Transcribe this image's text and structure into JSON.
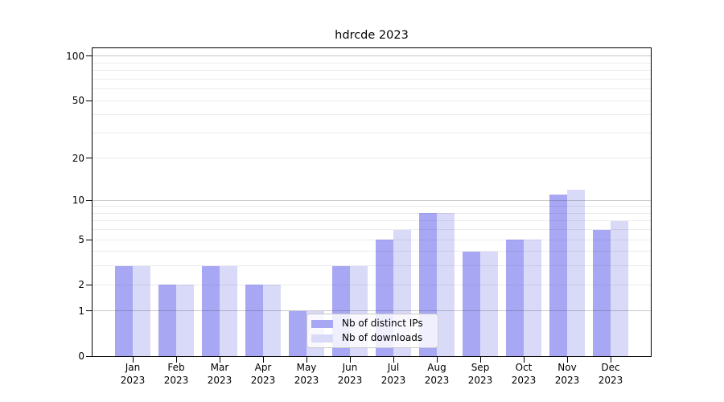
{
  "title": "hdrcde 2023",
  "chart_data": {
    "type": "bar",
    "title": "hdrcde 2023",
    "categories": [
      "Jan 2023",
      "Feb 2023",
      "Mar 2023",
      "Apr 2023",
      "May 2023",
      "Jun 2023",
      "Jul 2023",
      "Aug 2023",
      "Sep 2023",
      "Oct 2023",
      "Nov 2023",
      "Dec 2023"
    ],
    "series": [
      {
        "name": "Nb of distinct IPs",
        "color": "#a7a7f4",
        "values": [
          3,
          2,
          3,
          2,
          1,
          3,
          5,
          8,
          4,
          5,
          11,
          6
        ]
      },
      {
        "name": "Nb of downloads",
        "color": "#d9d9f8",
        "values": [
          3,
          2,
          3,
          2,
          1,
          3,
          6,
          8,
          4,
          5,
          12,
          7
        ]
      }
    ],
    "xlabel": "",
    "ylabel": "",
    "yscale": "log1p",
    "ylim": [
      0,
      110
    ],
    "ytick_values": [
      0,
      1,
      2,
      5,
      10,
      20,
      50,
      100
    ],
    "ytick_labels": [
      "0",
      "1",
      "2",
      "5",
      "10",
      "20",
      "50",
      "100"
    ],
    "grid_minor_values": [
      2,
      3,
      4,
      5,
      6,
      7,
      8,
      9,
      20,
      30,
      40,
      50,
      60,
      70,
      80,
      90
    ],
    "grid_major_values": [
      1,
      10,
      100
    ],
    "grid": "horizontal, drawn over bars",
    "legend_position": "lower center, inside axes"
  },
  "legend": {
    "items": [
      {
        "label": "Nb of distinct IPs",
        "color": "#a7a7f4"
      },
      {
        "label": "Nb of downloads",
        "color": "#d9d9f8"
      }
    ]
  },
  "colors": {
    "background": "#ffffff",
    "bar_distinct_ips": "#a7a7f4",
    "bar_downloads": "#d9d9f8",
    "axis": "#000000",
    "legend_border": "#c9c9c9"
  }
}
